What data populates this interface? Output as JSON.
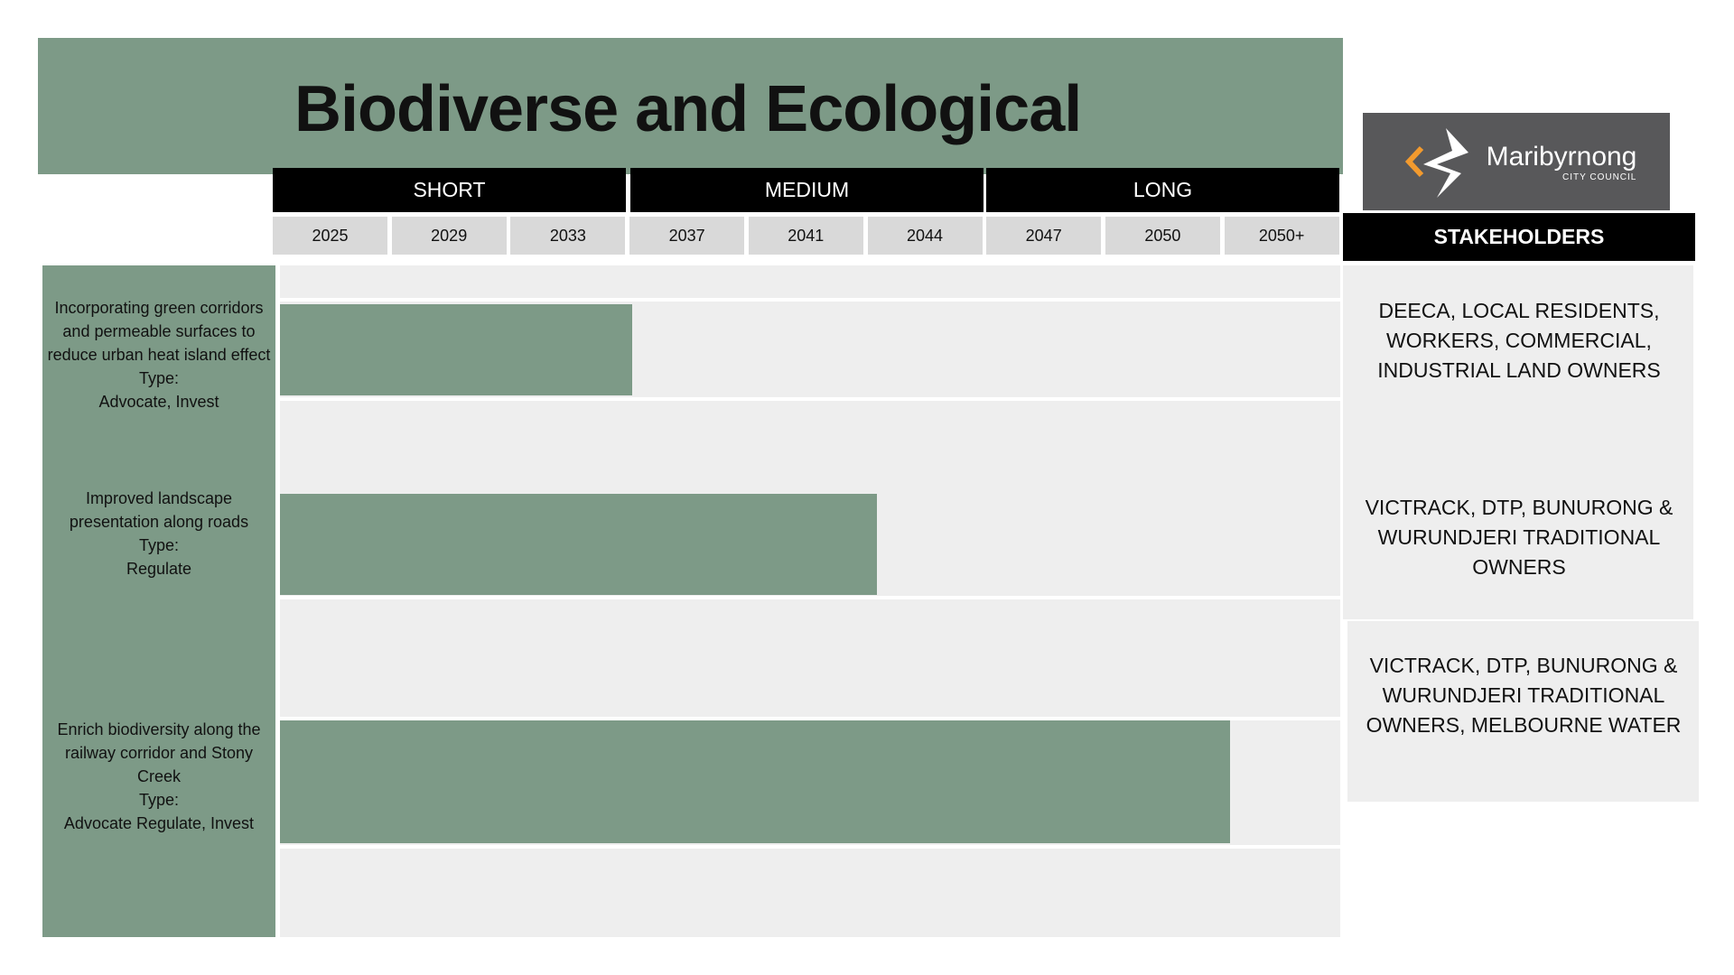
{
  "header": {
    "title": "Biodiverse and Ecological"
  },
  "logo": {
    "name": "Maribyrnong",
    "subtitle": "CITY COUNCIL"
  },
  "phases": [
    "SHORT",
    "MEDIUM",
    "LONG"
  ],
  "years": [
    "2025",
    "2029",
    "2033",
    "2037",
    "2041",
    "2044",
    "2047",
    "2050",
    "2050+"
  ],
  "stakeholders_heading": "STAKEHOLDERS",
  "rows": [
    {
      "description": "Incorporating green corridors and permeable surfaces to reduce urban heat island effect",
      "type_label": "Type:",
      "type": "Advocate, Invest",
      "stakeholders": "DEECA, LOCAL RESIDENTS, WORKERS, COMMERCIAL, INDUSTRIAL LAND OWNERS"
    },
    {
      "description": "Improved landscape presentation along roads",
      "type_label": "Type:",
      "type": "Regulate",
      "stakeholders": "VICTRACK, DTP, BUNURONG & WURUNDJERI TRADITIONAL OWNERS"
    },
    {
      "description": "Enrich biodiversity along the railway corridor and Stony Creek",
      "type_label": "Type:",
      "type": "Advocate Regulate, Invest",
      "stakeholders": "VICTRACK, DTP, BUNURONG & WURUNDJERI TRADITIONAL OWNERS, MELBOURNE WATER"
    }
  ]
}
